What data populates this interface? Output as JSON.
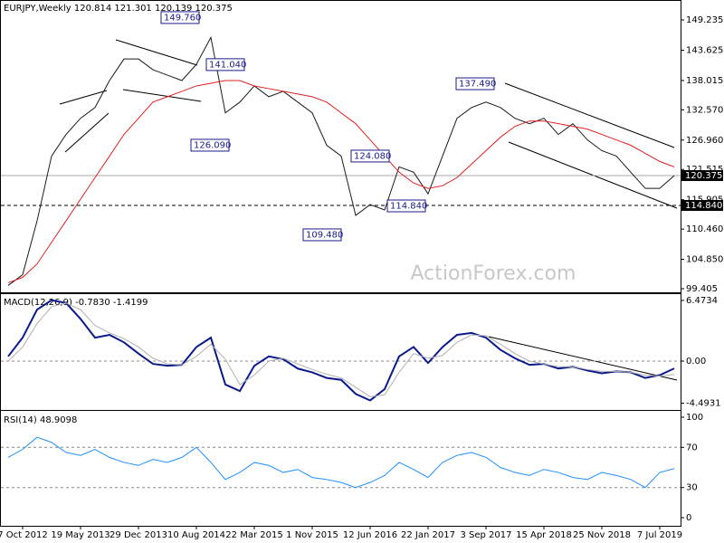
{
  "chart_data": [
    {
      "type": "line",
      "title": "EURJPY,Weekly  120.814 121.301 120.139 120.375",
      "watermark": "ActionForex.com",
      "categories": [
        null,
        "7 Oct 2012",
        null,
        null,
        null,
        "19 May 2013",
        null,
        null,
        null,
        "29 Dec 2013",
        null,
        null,
        null,
        "10 Aug 2014",
        null,
        null,
        null,
        "22 Mar 2015",
        null,
        null,
        null,
        "1 Nov 2015",
        null,
        null,
        null,
        "12 Jun 2016",
        null,
        null,
        null,
        "22 Jan 2017",
        null,
        null,
        null,
        "3 Sep 2017",
        null,
        null,
        null,
        "15 Apr 2018",
        null,
        null,
        null,
        "25 Nov 2018",
        null,
        null,
        null,
        "7 Jul 2019",
        null
      ],
      "series": [
        {
          "color": "#1a1a1a",
          "values": [
            100,
            102,
            112,
            124,
            128,
            131,
            133,
            138,
            142,
            142,
            140,
            139,
            138,
            141,
            146,
            132,
            134,
            137,
            135,
            136,
            134,
            132,
            126,
            124,
            113,
            115,
            114,
            122,
            121,
            117,
            124,
            131,
            133,
            134,
            133,
            131,
            130,
            131,
            128,
            130,
            127,
            125,
            124,
            121,
            118,
            118,
            120.375
          ]
        },
        {
          "color": "#e02020",
          "values": [
            100.5,
            101.5,
            104,
            108,
            112,
            116,
            120,
            124,
            128,
            131,
            134,
            135,
            136,
            137,
            137.5,
            138,
            138,
            137,
            136.5,
            136,
            135.5,
            135,
            134,
            132,
            130,
            127,
            124,
            121,
            119,
            118,
            118.5,
            120,
            122.5,
            125,
            127.5,
            129.5,
            130.5,
            130.5,
            130,
            129.5,
            129,
            128,
            127,
            126,
            124.5,
            123,
            122
          ]
        }
      ],
      "ylim": [
        98.9,
        152.6
      ],
      "yticks": [
        149.235,
        143.625,
        138.015,
        {
          "value": 132.57,
          "label": "132.570"
        },
        {
          "value": 126.96,
          "label": "126.960"
        },
        121.515,
        115.905,
        {
          "value": 110.46,
          "label": "110.460"
        },
        {
          "value": 104.85,
          "label": "104.850"
        },
        99.405
      ],
      "price_lines": [
        {
          "value": 120.375,
          "label": "120.375",
          "style": "solid"
        },
        {
          "value": 114.84,
          "label": "114.840",
          "style": "dashed"
        }
      ],
      "annotations": [
        {
          "value": 149.76,
          "label": "149.760"
        },
        {
          "value": 141.04,
          "label": "141.040"
        },
        {
          "value": 126.09,
          "label": "126.090"
        },
        {
          "value": 137.49,
          "label": "137.490"
        },
        {
          "value": 124.08,
          "label": "124.080"
        },
        {
          "value": 114.84,
          "label": "114.840"
        },
        {
          "value": 109.48,
          "label": "109.480"
        }
      ]
    },
    {
      "type": "line",
      "title": "MACD(12,26,9) -0.7830 -1.4199",
      "grid": true,
      "series": [
        {
          "color": "#0a1a8c",
          "values": [
            0.5,
            2.5,
            5.5,
            6.5,
            6.2,
            4.5,
            2.5,
            2.8,
            2.0,
            0.8,
            -0.3,
            -0.5,
            -0.4,
            1.5,
            2.5,
            -2.5,
            -3.2,
            -0.5,
            0.5,
            0.2,
            -0.8,
            -1.2,
            -1.8,
            -2.0,
            -3.5,
            -4.2,
            -3.0,
            0.5,
            1.5,
            -0.2,
            1.5,
            2.8,
            3.0,
            2.5,
            1.2,
            0.3,
            -0.4,
            -0.3,
            -0.8,
            -0.6,
            -1.0,
            -1.3,
            -1.1,
            -1.2,
            -1.8,
            -1.5,
            -0.783
          ]
        },
        {
          "color": "#b0b0b0",
          "values": [
            0,
            1.5,
            4,
            5.8,
            6.2,
            5.5,
            3.8,
            3,
            2.4,
            1.5,
            0.3,
            -0.3,
            -0.4,
            0.5,
            1.8,
            0.2,
            -2.5,
            -1.5,
            0,
            0.3,
            -0.3,
            -0.9,
            -1.4,
            -1.8,
            -2.8,
            -3.8,
            -3.6,
            -1.2,
            0.8,
            0.3,
            0.6,
            2,
            2.8,
            2.7,
            1.8,
            0.8,
            0,
            -0.3,
            -0.6,
            -0.6,
            -0.9,
            -1.1,
            -1.1,
            -1.2,
            -1.5,
            -1.6,
            -1.4199
          ]
        }
      ],
      "ylim": [
        -5.12,
        7.05
      ],
      "yticks": [
        6.4734,
        {
          "value": 0,
          "label": "0.00"
        },
        -4.4931
      ]
    },
    {
      "type": "line",
      "title": "RSI(14) 48.9098",
      "grid": true,
      "series": [
        {
          "color": "#1e90ff",
          "values": [
            60,
            68,
            80,
            75,
            65,
            62,
            68,
            60,
            55,
            52,
            58,
            55,
            60,
            70,
            55,
            38,
            45,
            55,
            52,
            45,
            48,
            40,
            38,
            35,
            30,
            35,
            42,
            55,
            48,
            40,
            55,
            62,
            65,
            60,
            50,
            45,
            42,
            48,
            45,
            40,
            38,
            45,
            42,
            38,
            30,
            45,
            48.9098
          ]
        }
      ],
      "ylim": [
        -7.2,
        105.4
      ],
      "yticks": [
        100,
        70,
        30,
        0
      ]
    }
  ]
}
